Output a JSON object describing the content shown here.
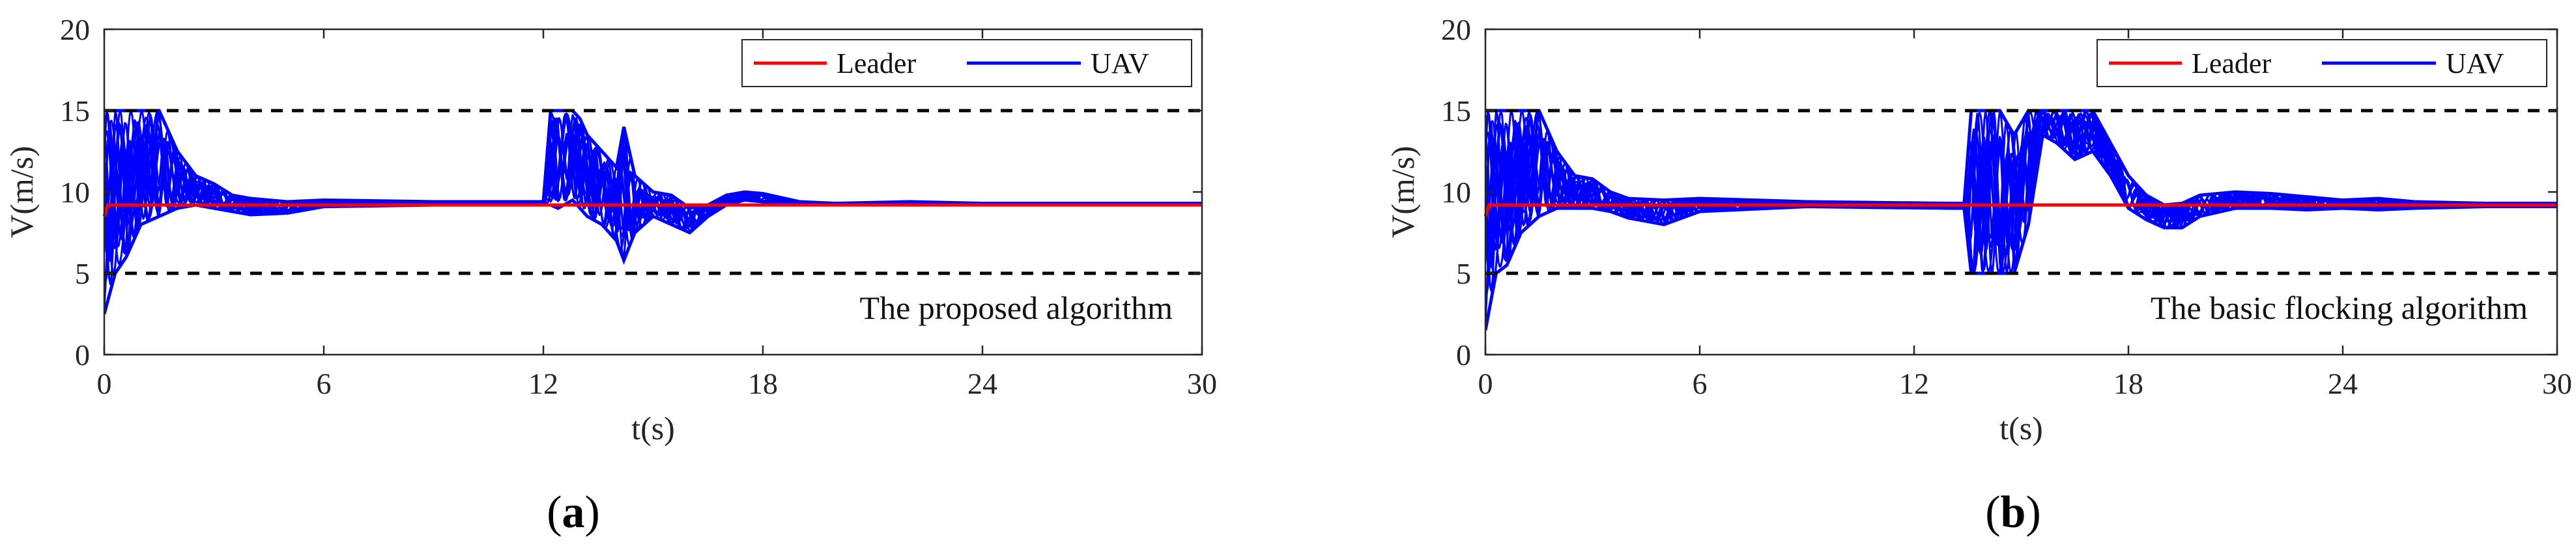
{
  "figure": {
    "panel_labels": [
      {
        "open": "(",
        "letter": "a",
        "close": ")"
      },
      {
        "open": "(",
        "letter": "b",
        "close": ")"
      }
    ]
  },
  "colors": {
    "leader": "#ff0000",
    "uav": "#0000ff",
    "bounds": "#000000",
    "axes": "#262626"
  },
  "chart_data": [
    {
      "type": "line",
      "title": "",
      "annotation": "The proposed algorithm",
      "xlabel": "t(s)",
      "ylabel": "V(m/s)",
      "xlim": [
        0,
        30
      ],
      "ylim": [
        0,
        20
      ],
      "xticks": [
        0,
        6,
        12,
        18,
        24,
        30
      ],
      "yticks": [
        0,
        5,
        10,
        15,
        20
      ],
      "grid": false,
      "legend": {
        "position": "top-right",
        "entries": [
          "Leader",
          "UAV"
        ]
      },
      "bounds": [
        5,
        15
      ],
      "leader": {
        "name": "Leader",
        "x": [
          0,
          0.1,
          30
        ],
        "y": [
          8.5,
          9.2,
          9.2
        ]
      },
      "uav_envelope": {
        "name": "UAV",
        "x": [
          0,
          0.3,
          0.6,
          1.0,
          1.5,
          2.0,
          2.5,
          3.0,
          3.5,
          4.0,
          5.0,
          6.0,
          9.0,
          12.0,
          12.2,
          12.4,
          12.8,
          13.0,
          13.2,
          13.6,
          14.0,
          14.2,
          14.5,
          15.0,
          15.5,
          16.0,
          16.5,
          17.0,
          17.5,
          18.0,
          19.0,
          20.0,
          22.0,
          24.0,
          30.0
        ],
        "upper": [
          15.0,
          15.0,
          15.0,
          15.0,
          15.0,
          12.5,
          11.0,
          10.5,
          9.8,
          9.6,
          9.4,
          9.5,
          9.4,
          9.4,
          15.0,
          15.0,
          15.0,
          14.5,
          13.5,
          12.5,
          11.5,
          14.0,
          11.0,
          10.0,
          9.8,
          9.0,
          9.2,
          9.8,
          10.0,
          9.9,
          9.4,
          9.3,
          9.4,
          9.3,
          9.3
        ],
        "lower": [
          2.5,
          5.0,
          6.0,
          8.0,
          8.5,
          9.0,
          9.2,
          9.0,
          8.8,
          8.6,
          8.7,
          9.1,
          9.2,
          9.2,
          9.2,
          9.0,
          9.5,
          9.0,
          8.5,
          8.0,
          7.0,
          5.8,
          7.5,
          8.5,
          8.0,
          7.5,
          8.5,
          9.2,
          9.5,
          9.4,
          9.2,
          9.2,
          9.3,
          9.2,
          9.2
        ]
      }
    },
    {
      "type": "line",
      "title": "",
      "annotation": "The basic flocking algorithm",
      "xlabel": "t(s)",
      "ylabel": "V(m/s)",
      "xlim": [
        0,
        30
      ],
      "ylim": [
        0,
        20
      ],
      "xticks": [
        0,
        6,
        12,
        18,
        24,
        30
      ],
      "yticks": [
        0,
        5,
        10,
        15,
        20
      ],
      "grid": false,
      "legend": {
        "position": "top-right",
        "entries": [
          "Leader",
          "UAV"
        ]
      },
      "bounds": [
        5,
        15
      ],
      "leader": {
        "name": "Leader",
        "x": [
          0,
          0.1,
          30
        ],
        "y": [
          8.5,
          9.2,
          9.2
        ]
      },
      "uav_envelope": {
        "name": "UAV",
        "x": [
          0,
          0.3,
          0.6,
          1.0,
          1.5,
          2.0,
          2.5,
          3.0,
          3.5,
          4.0,
          5.0,
          6.0,
          9.0,
          13.0,
          13.4,
          13.6,
          14.0,
          14.4,
          14.8,
          15.2,
          15.6,
          16.0,
          16.5,
          17.0,
          17.5,
          18.0,
          18.5,
          19.0,
          19.5,
          20.0,
          21.0,
          22.0,
          23.0,
          24.0,
          25.0,
          26.0,
          28.0,
          30.0
        ],
        "upper": [
          15.0,
          15.0,
          15.0,
          15.0,
          15.0,
          12.5,
          11.0,
          10.8,
          10.0,
          9.6,
          9.5,
          9.6,
          9.4,
          9.3,
          9.3,
          15.0,
          15.0,
          15.0,
          13.5,
          15.0,
          15.0,
          15.0,
          15.0,
          15.0,
          13.0,
          11.0,
          9.8,
          9.2,
          9.3,
          9.8,
          10.0,
          9.9,
          9.7,
          9.5,
          9.6,
          9.4,
          9.3,
          9.3
        ],
        "lower": [
          1.5,
          5.0,
          5.5,
          7.5,
          8.5,
          9.0,
          9.0,
          9.0,
          8.8,
          8.4,
          8.0,
          8.8,
          9.1,
          9.0,
          9.0,
          5.0,
          5.0,
          5.0,
          5.0,
          8.0,
          13.5,
          13.0,
          12.0,
          12.5,
          11.0,
          9.0,
          8.3,
          7.8,
          7.8,
          8.5,
          9.0,
          9.0,
          8.9,
          9.0,
          8.9,
          9.0,
          9.1,
          9.1
        ]
      }
    }
  ]
}
